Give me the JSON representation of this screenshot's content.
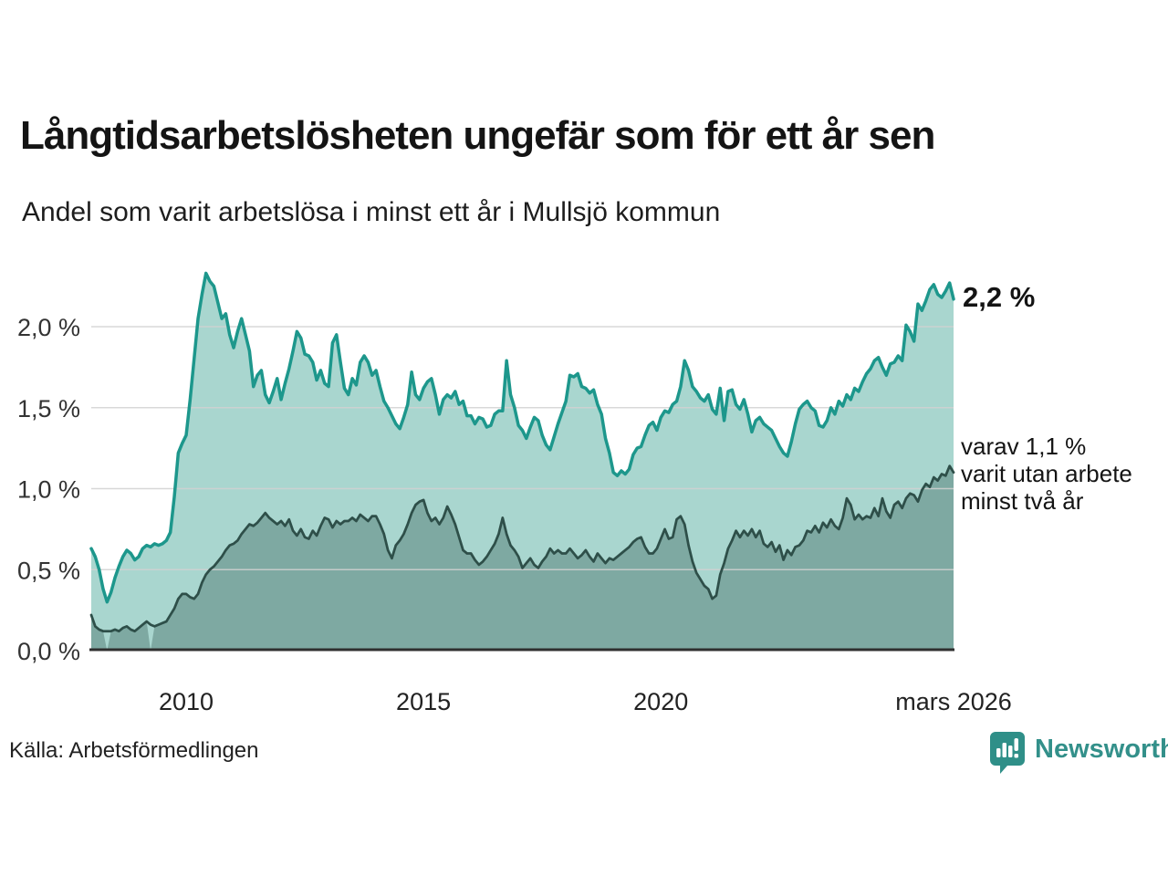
{
  "title": "Långtidsarbetslösheten ungefär som för ett år sen",
  "subtitle": "Andel som varit arbetslösa i minst ett år i Mullsjö kommun",
  "annotations": {
    "end_value": "2,2 %",
    "secondary": "varav 1,1 %\nvarit utan arbete\nminst två år"
  },
  "source": "Källa: Arbetsförmedlingen",
  "logo": {
    "text": "Newsworthy"
  },
  "colors": {
    "upper_line": "#1d978c",
    "upper_fill": "#a9d6cf",
    "lower_line": "#2e4f49",
    "lower_fill": "#7ea9a2",
    "gridline": "#d2d2d2",
    "axis_line": "#2f2f2f",
    "tick_text": "#333333",
    "logo_teal": "#2f8f88"
  },
  "chart_data": {
    "type": "area",
    "title": "Långtidsarbetslösheten ungefär som för ett år sen",
    "subtitle": "Andel som varit arbetslösa i minst ett år i Mullsjö kommun",
    "ylim": [
      0,
      2.35
    ],
    "grid": true,
    "y_ticks": [
      {
        "value": 2.0,
        "label": "2,0 %"
      },
      {
        "value": 1.5,
        "label": "1,5 %"
      },
      {
        "value": 1.0,
        "label": "1,0 %"
      },
      {
        "value": 0.5,
        "label": "0,5 %"
      },
      {
        "value": 0.0,
        "label": "0,0 %"
      }
    ],
    "x_ticks": [
      {
        "month_index": 24,
        "label": "2010"
      },
      {
        "month_index": 84,
        "label": "2015"
      },
      {
        "month_index": 144,
        "label": "2020"
      },
      {
        "month_index": 218,
        "label": "mars 2026"
      }
    ],
    "end_labels": {
      "upper": "2,2 %",
      "lower": "varav 1,1 % varit utan arbete minst två år"
    },
    "lower_fill_gap_months": [
      4,
      15
    ],
    "series": [
      {
        "name": "arbetslösa minst ett år",
        "values": [
          0.63,
          0.58,
          0.5,
          0.38,
          0.3,
          0.36,
          0.45,
          0.52,
          0.58,
          0.62,
          0.6,
          0.56,
          0.58,
          0.63,
          0.65,
          0.64,
          0.66,
          0.65,
          0.66,
          0.68,
          0.73,
          0.95,
          1.22,
          1.28,
          1.33,
          1.55,
          1.8,
          2.05,
          2.2,
          2.33,
          2.28,
          2.25,
          2.15,
          2.05,
          2.08,
          1.95,
          1.87,
          1.97,
          2.05,
          1.95,
          1.85,
          1.63,
          1.7,
          1.73,
          1.58,
          1.53,
          1.6,
          1.68,
          1.55,
          1.65,
          1.74,
          1.85,
          1.97,
          1.93,
          1.83,
          1.82,
          1.78,
          1.67,
          1.73,
          1.65,
          1.63,
          1.9,
          1.95,
          1.78,
          1.62,
          1.58,
          1.68,
          1.64,
          1.78,
          1.82,
          1.78,
          1.7,
          1.73,
          1.63,
          1.54,
          1.5,
          1.45,
          1.4,
          1.37,
          1.44,
          1.52,
          1.72,
          1.58,
          1.55,
          1.62,
          1.66,
          1.68,
          1.58,
          1.46,
          1.55,
          1.58,
          1.56,
          1.6,
          1.52,
          1.54,
          1.45,
          1.45,
          1.4,
          1.44,
          1.43,
          1.38,
          1.39,
          1.46,
          1.48,
          1.48,
          1.79,
          1.58,
          1.5,
          1.39,
          1.36,
          1.31,
          1.38,
          1.44,
          1.42,
          1.33,
          1.27,
          1.24,
          1.32,
          1.4,
          1.47,
          1.54,
          1.7,
          1.69,
          1.71,
          1.63,
          1.62,
          1.59,
          1.61,
          1.52,
          1.46,
          1.31,
          1.22,
          1.1,
          1.08,
          1.11,
          1.09,
          1.12,
          1.21,
          1.25,
          1.26,
          1.33,
          1.39,
          1.41,
          1.36,
          1.44,
          1.48,
          1.47,
          1.52,
          1.54,
          1.63,
          1.79,
          1.73,
          1.63,
          1.6,
          1.56,
          1.54,
          1.58,
          1.49,
          1.46,
          1.62,
          1.42,
          1.6,
          1.61,
          1.52,
          1.49,
          1.55,
          1.46,
          1.35,
          1.42,
          1.44,
          1.4,
          1.38,
          1.36,
          1.31,
          1.26,
          1.22,
          1.2,
          1.29,
          1.4,
          1.49,
          1.52,
          1.54,
          1.5,
          1.48,
          1.39,
          1.38,
          1.42,
          1.5,
          1.46,
          1.54,
          1.51,
          1.58,
          1.55,
          1.62,
          1.6,
          1.66,
          1.71,
          1.74,
          1.79,
          1.81,
          1.75,
          1.7,
          1.77,
          1.78,
          1.82,
          1.79,
          2.01,
          1.97,
          1.91,
          2.14,
          2.1,
          2.16,
          2.23,
          2.26,
          2.2,
          2.18,
          2.22,
          2.27,
          2.17
        ]
      },
      {
        "name": "varav utan arbete minst två år",
        "values": [
          0.22,
          0.15,
          0.13,
          0.12,
          0.12,
          0.12,
          0.13,
          0.12,
          0.14,
          0.15,
          0.13,
          0.12,
          0.14,
          0.16,
          0.18,
          0.16,
          0.15,
          0.16,
          0.17,
          0.18,
          0.22,
          0.26,
          0.32,
          0.35,
          0.35,
          0.33,
          0.32,
          0.35,
          0.42,
          0.47,
          0.5,
          0.52,
          0.55,
          0.58,
          0.62,
          0.65,
          0.66,
          0.68,
          0.72,
          0.75,
          0.78,
          0.77,
          0.79,
          0.82,
          0.85,
          0.82,
          0.8,
          0.78,
          0.8,
          0.77,
          0.81,
          0.74,
          0.71,
          0.75,
          0.7,
          0.69,
          0.74,
          0.71,
          0.77,
          0.82,
          0.81,
          0.76,
          0.8,
          0.78,
          0.8,
          0.8,
          0.82,
          0.8,
          0.84,
          0.82,
          0.8,
          0.83,
          0.83,
          0.78,
          0.72,
          0.62,
          0.57,
          0.65,
          0.68,
          0.72,
          0.78,
          0.85,
          0.9,
          0.92,
          0.93,
          0.85,
          0.8,
          0.82,
          0.78,
          0.82,
          0.89,
          0.84,
          0.78,
          0.7,
          0.62,
          0.6,
          0.6,
          0.56,
          0.53,
          0.55,
          0.58,
          0.62,
          0.66,
          0.72,
          0.82,
          0.72,
          0.65,
          0.62,
          0.58,
          0.51,
          0.54,
          0.57,
          0.53,
          0.51,
          0.55,
          0.58,
          0.63,
          0.6,
          0.62,
          0.6,
          0.6,
          0.63,
          0.6,
          0.57,
          0.59,
          0.62,
          0.58,
          0.55,
          0.6,
          0.57,
          0.54,
          0.57,
          0.56,
          0.58,
          0.6,
          0.62,
          0.64,
          0.67,
          0.69,
          0.7,
          0.64,
          0.6,
          0.6,
          0.63,
          0.69,
          0.75,
          0.69,
          0.7,
          0.81,
          0.83,
          0.78,
          0.65,
          0.55,
          0.48,
          0.44,
          0.4,
          0.38,
          0.32,
          0.34,
          0.47,
          0.54,
          0.63,
          0.68,
          0.74,
          0.7,
          0.74,
          0.71,
          0.75,
          0.7,
          0.74,
          0.66,
          0.64,
          0.67,
          0.61,
          0.65,
          0.56,
          0.62,
          0.59,
          0.64,
          0.65,
          0.68,
          0.74,
          0.73,
          0.77,
          0.73,
          0.79,
          0.76,
          0.81,
          0.77,
          0.75,
          0.82,
          0.94,
          0.9,
          0.81,
          0.84,
          0.81,
          0.83,
          0.82,
          0.88,
          0.83,
          0.94,
          0.86,
          0.82,
          0.9,
          0.92,
          0.88,
          0.94,
          0.97,
          0.96,
          0.92,
          0.99,
          1.03,
          1.01,
          1.07,
          1.05,
          1.09,
          1.08,
          1.14,
          1.1
        ]
      }
    ]
  }
}
